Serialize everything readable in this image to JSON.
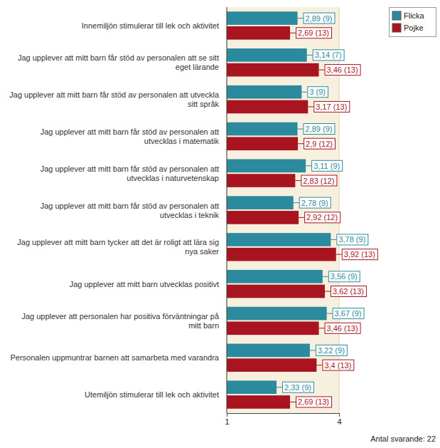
{
  "chart_data": {
    "type": "bar",
    "orientation": "horizontal",
    "data_labels": true,
    "legend": "top-right",
    "categories": [
      "Innemiljön stimulerar till lek och aktivitet",
      "Jag upplever att mitt barn får stöd av personalen att se sitt eget lärande",
      "Jag upplever att mitt barn får stöd av personalen att utveckla sitt språk",
      "Jag upplever att mitt barn får stöd av personalen att utvecklas i matematik",
      "Jag upplever att mitt barn får stöd av personalen att utvecklas i naturvetenskap",
      "Jag upplever att mitt barn får stöd av personalen att utvecklas i teknik",
      "Jag upplever att mitt barn tycker att det är roligt att lära sig nya saker",
      "Jag upplever att mitt barn utvecklas positivt",
      "Jag upplever att personalen har positiva förväntningar på mitt barn",
      "Personalen uppmuntrar barnen att samarbeta med varandra",
      "Utemiljön stimulerar till lek och aktivitet"
    ],
    "series": [
      {
        "name": "Flicka",
        "color": "#2b8a9d",
        "values": [
          2.89,
          3.14,
          3,
          2.89,
          3.11,
          2.78,
          3.78,
          3.56,
          3.67,
          3.22,
          2.33
        ],
        "value_labels": [
          "2,89 (9)",
          "3,14 (7)",
          "3 (9)",
          "2,89 (9)",
          "3,11 (9)",
          "2,78 (9)",
          "3,78 (9)",
          "3,56 (9)",
          "3,67 (9)",
          "3,22 (9)",
          "2,33 (9)"
        ]
      },
      {
        "name": "Pojke",
        "color": "#a8141f",
        "values": [
          2.69,
          3.46,
          3.17,
          2.9,
          2.83,
          2.92,
          3.92,
          3.62,
          3.46,
          3.4,
          2.69
        ],
        "value_labels": [
          "2,69 (13)",
          "3,46 (13)",
          "3,17 (13)",
          "2,9 (12)",
          "2,83 (12)",
          "2,92 (12)",
          "3,92 (13)",
          "3,62 (13)",
          "3,46 (13)",
          "3,4 (13)",
          "2,69 (13)"
        ]
      }
    ],
    "xlim": [
      1,
      4
    ],
    "xticks": [
      1,
      4
    ],
    "annotations": [
      "Antal svarande: 22"
    ]
  }
}
